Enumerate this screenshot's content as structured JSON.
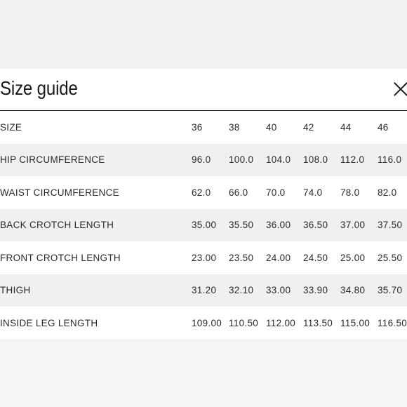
{
  "modal": {
    "title": "Size guide",
    "close_icon": "close-icon"
  },
  "table": {
    "rows": [
      {
        "label": "SIZE",
        "values": [
          "36",
          "38",
          "40",
          "42",
          "44",
          "46"
        ]
      },
      {
        "label": "HIP CIRCUMFERENCE",
        "values": [
          "96.0",
          "100.0",
          "104.0",
          "108.0",
          "112.0",
          "116.0"
        ]
      },
      {
        "label": "WAIST CIRCUMFERENCE",
        "values": [
          "62.0",
          "66.0",
          "70.0",
          "74.0",
          "78.0",
          "82.0"
        ]
      },
      {
        "label": "BACK CROTCH LENGTH",
        "values": [
          "35.00",
          "35.50",
          "36.00",
          "36.50",
          "37.00",
          "37.50"
        ]
      },
      {
        "label": "FRONT CROTCH LENGTH",
        "values": [
          "23.00",
          "23.50",
          "24.00",
          "24.50",
          "25.00",
          "25.50"
        ]
      },
      {
        "label": "THIGH",
        "values": [
          "31.20",
          "32.10",
          "33.00",
          "33.90",
          "34.80",
          "35.70"
        ]
      },
      {
        "label": "INSIDE LEG LENGTH",
        "values": [
          "109.00",
          "110.50",
          "112.00",
          "113.50",
          "115.00",
          "116.50"
        ]
      }
    ]
  }
}
